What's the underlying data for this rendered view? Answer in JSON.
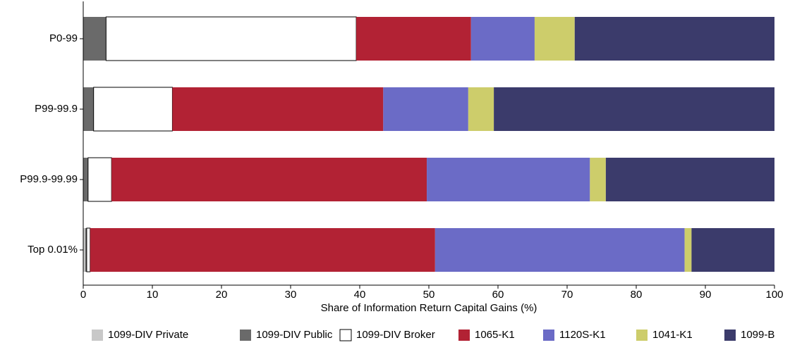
{
  "chart_data": {
    "type": "stacked_barh",
    "xlabel": "Share of Information Return Capital Gains (%)",
    "categories": [
      "P0-99",
      "P99-99.9",
      "P99.9-99.99",
      "Top 0.01%"
    ],
    "series": [
      {
        "name": "1099-DIV Private",
        "color": "#c8c8c8",
        "values": [
          0,
          0,
          0,
          0.3
        ]
      },
      {
        "name": "1099-DIV Public",
        "color": "#6a6a6a",
        "values": [
          3.3,
          1.5,
          0.7,
          0.2
        ]
      },
      {
        "name": "1099-DIV Broker",
        "color": "#ffffff",
        "values": [
          36.2,
          11.4,
          3.4,
          0.5
        ]
      },
      {
        "name": "1065-K1",
        "color": "#b22234",
        "values": [
          16.6,
          30.5,
          45.6,
          49.9
        ]
      },
      {
        "name": "1120S-K1",
        "color": "#6b6bc6",
        "values": [
          9.2,
          12.3,
          23.6,
          36.1
        ]
      },
      {
        "name": "1041-K1",
        "color": "#cdcd6b",
        "values": [
          5.8,
          3.7,
          2.3,
          1.0
        ]
      },
      {
        "name": "1099-B",
        "color": "#3b3b6b",
        "values": [
          28.9,
          40.6,
          24.4,
          12.0
        ]
      }
    ],
    "xlim": [
      0,
      100
    ],
    "xticks": [
      0,
      10,
      20,
      30,
      40,
      50,
      60,
      70,
      80,
      90,
      100
    ],
    "legend": "bottom"
  }
}
